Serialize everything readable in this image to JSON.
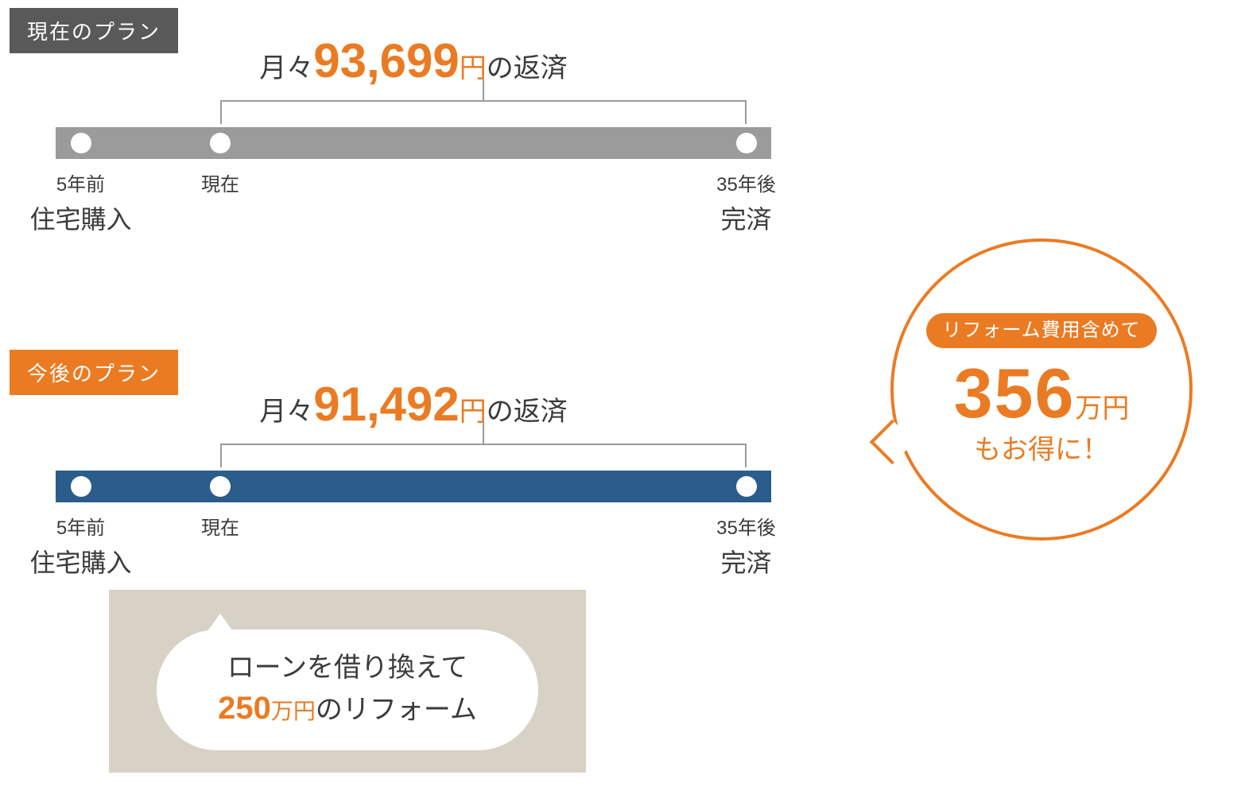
{
  "colors": {
    "accent": "#eb7b23",
    "grey_bar": "#9b9b9b",
    "blue_bar": "#2a5d8b",
    "tag_grey": "#595959",
    "panel": "#d7d2c5",
    "text": "#3b3b3b"
  },
  "current": {
    "tag": "現在のプラン",
    "headline_pre": "月々",
    "headline_amount": "93,699",
    "headline_unit": "円",
    "headline_post": "の返済",
    "markers": {
      "start": {
        "time": "5年前",
        "desc": "住宅購入"
      },
      "now": {
        "time": "現在",
        "desc": ""
      },
      "end": {
        "time": "35年後",
        "desc": "完済"
      }
    }
  },
  "future": {
    "tag": "今後のプラン",
    "headline_pre": "月々",
    "headline_amount": "91,492",
    "headline_unit": "円",
    "headline_post": "の返済",
    "markers": {
      "start": {
        "time": "5年前",
        "desc": "住宅購入"
      },
      "now": {
        "time": "現在",
        "desc": ""
      },
      "end": {
        "time": "35年後",
        "desc": "完済"
      }
    }
  },
  "pill": {
    "line1": "ローンを借り換えて",
    "amount": "250",
    "unit": "万円",
    "rest": "のリフォーム"
  },
  "badge": {
    "top": "リフォーム費用含めて",
    "amount": "356",
    "unit": "万円",
    "msg": "もお得に！"
  },
  "positions": {
    "start_pct": 3.5,
    "now_pct": 23,
    "end_pct": 96.5
  }
}
